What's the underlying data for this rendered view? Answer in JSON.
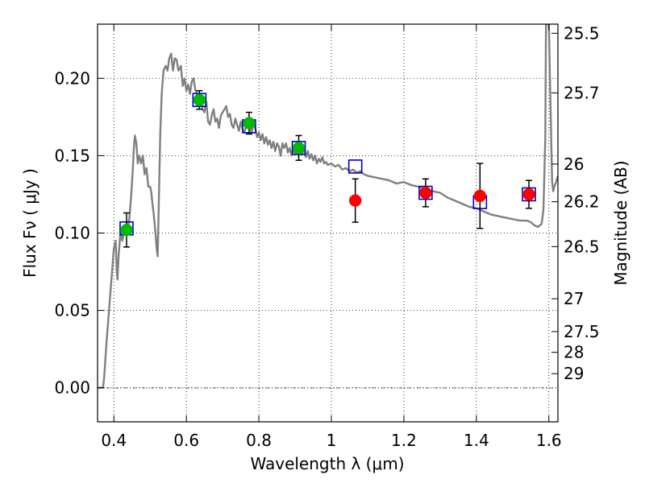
{
  "chart_data": {
    "type": "scatter",
    "xlabel": "Wavelength  λ (μm)",
    "ylabel": "Flux  Fν  ( μJy )",
    "ylabel_right": "Magnitude (AB)",
    "xlim": [
      0.355,
      1.625
    ],
    "ylim": [
      -0.022,
      0.235
    ],
    "grid": true,
    "x_ticks": [
      {
        "value": 0.4,
        "label": "0.4"
      },
      {
        "value": 0.6,
        "label": "0.6"
      },
      {
        "value": 0.8,
        "label": "0.8"
      },
      {
        "value": 1.0,
        "label": "1"
      },
      {
        "value": 1.2,
        "label": "1.2"
      },
      {
        "value": 1.4,
        "label": "1.4"
      },
      {
        "value": 1.6,
        "label": "1.6"
      }
    ],
    "y_ticks": [
      {
        "value": 0.0,
        "label": "0.00"
      },
      {
        "value": 0.05,
        "label": "0.05"
      },
      {
        "value": 0.1,
        "label": "0.10"
      },
      {
        "value": 0.15,
        "label": "0.15"
      },
      {
        "value": 0.2,
        "label": "0.20"
      }
    ],
    "right_ticks": [
      {
        "value": 25.5,
        "label": "25.5"
      },
      {
        "value": 25.7,
        "label": "25.7"
      },
      {
        "value": 26.0,
        "label": "26"
      },
      {
        "value": 26.2,
        "label": "26.2"
      },
      {
        "value": 26.5,
        "label": "26.5"
      },
      {
        "value": 27.0,
        "label": "27"
      },
      {
        "value": 27.5,
        "label": "27.5"
      },
      {
        "value": 28.0,
        "label": "28"
      },
      {
        "value": 29.0,
        "label": "29"
      }
    ],
    "series": [
      {
        "role": "model-spectrum",
        "color": "#808080",
        "points": [
          [
            0.355,
            0.0
          ],
          [
            0.37,
            0.0
          ],
          [
            0.373,
            0.006
          ],
          [
            0.38,
            0.03
          ],
          [
            0.39,
            0.06
          ],
          [
            0.395,
            0.075
          ],
          [
            0.4,
            0.09
          ],
          [
            0.405,
            0.095
          ],
          [
            0.408,
            0.075
          ],
          [
            0.41,
            0.07
          ],
          [
            0.413,
            0.085
          ],
          [
            0.418,
            0.1
          ],
          [
            0.423,
            0.095
          ],
          [
            0.428,
            0.1
          ],
          [
            0.433,
            0.105
          ],
          [
            0.438,
            0.102
          ],
          [
            0.443,
            0.11
          ],
          [
            0.448,
            0.125
          ],
          [
            0.452,
            0.14
          ],
          [
            0.455,
            0.155
          ],
          [
            0.458,
            0.163
          ],
          [
            0.462,
            0.158
          ],
          [
            0.466,
            0.145
          ],
          [
            0.47,
            0.15
          ],
          [
            0.475,
            0.145
          ],
          [
            0.48,
            0.15
          ],
          [
            0.485,
            0.138
          ],
          [
            0.49,
            0.142
          ],
          [
            0.495,
            0.13
          ],
          [
            0.5,
            0.13
          ],
          [
            0.503,
            0.127
          ],
          [
            0.507,
            0.118
          ],
          [
            0.51,
            0.112
          ],
          [
            0.515,
            0.1
          ],
          [
            0.518,
            0.09
          ],
          [
            0.521,
            0.085
          ],
          [
            0.524,
            0.12
          ],
          [
            0.528,
            0.165
          ],
          [
            0.532,
            0.19
          ],
          [
            0.537,
            0.205
          ],
          [
            0.543,
            0.208
          ],
          [
            0.548,
            0.205
          ],
          [
            0.553,
            0.213
          ],
          [
            0.558,
            0.216
          ],
          [
            0.563,
            0.205
          ],
          [
            0.568,
            0.213
          ],
          [
            0.573,
            0.212
          ],
          [
            0.578,
            0.205
          ],
          [
            0.585,
            0.208
          ],
          [
            0.59,
            0.195
          ],
          [
            0.595,
            0.2
          ],
          [
            0.6,
            0.192
          ],
          [
            0.605,
            0.196
          ],
          [
            0.61,
            0.19
          ],
          [
            0.615,
            0.198
          ],
          [
            0.62,
            0.2
          ],
          [
            0.625,
            0.192
          ],
          [
            0.63,
            0.19
          ],
          [
            0.635,
            0.187
          ],
          [
            0.64,
            0.185
          ],
          [
            0.645,
            0.18
          ],
          [
            0.65,
            0.178
          ],
          [
            0.655,
            0.185
          ],
          [
            0.66,
            0.172
          ],
          [
            0.665,
            0.17
          ],
          [
            0.67,
            0.176
          ],
          [
            0.675,
            0.18
          ],
          [
            0.68,
            0.172
          ],
          [
            0.685,
            0.174
          ],
          [
            0.69,
            0.168
          ],
          [
            0.695,
            0.176
          ],
          [
            0.7,
            0.178
          ],
          [
            0.705,
            0.18
          ],
          [
            0.71,
            0.182
          ],
          [
            0.715,
            0.175
          ],
          [
            0.72,
            0.177
          ],
          [
            0.725,
            0.17
          ],
          [
            0.73,
            0.168
          ],
          [
            0.735,
            0.174
          ],
          [
            0.74,
            0.17
          ],
          [
            0.745,
            0.166
          ],
          [
            0.75,
            0.172
          ],
          [
            0.755,
            0.167
          ],
          [
            0.76,
            0.165
          ],
          [
            0.765,
            0.17
          ],
          [
            0.77,
            0.172
          ],
          [
            0.775,
            0.168
          ],
          [
            0.78,
            0.165
          ],
          [
            0.785,
            0.17
          ],
          [
            0.79,
            0.168
          ],
          [
            0.795,
            0.162
          ],
          [
            0.8,
            0.165
          ],
          [
            0.805,
            0.16
          ],
          [
            0.81,
            0.164
          ],
          [
            0.815,
            0.158
          ],
          [
            0.82,
            0.162
          ],
          [
            0.825,
            0.157
          ],
          [
            0.83,
            0.16
          ],
          [
            0.835,
            0.155
          ],
          [
            0.84,
            0.159
          ],
          [
            0.845,
            0.153
          ],
          [
            0.85,
            0.158
          ],
          [
            0.855,
            0.156
          ],
          [
            0.86,
            0.15
          ],
          [
            0.865,
            0.158
          ],
          [
            0.87,
            0.155
          ],
          [
            0.875,
            0.158
          ],
          [
            0.88,
            0.152
          ],
          [
            0.885,
            0.155
          ],
          [
            0.89,
            0.15
          ],
          [
            0.895,
            0.154
          ],
          [
            0.9,
            0.151
          ],
          [
            0.905,
            0.157
          ],
          [
            0.91,
            0.153
          ],
          [
            0.915,
            0.157
          ],
          [
            0.92,
            0.151
          ],
          [
            0.925,
            0.155
          ],
          [
            0.93,
            0.149
          ],
          [
            0.935,
            0.153
          ],
          [
            0.94,
            0.148
          ],
          [
            0.945,
            0.151
          ],
          [
            0.95,
            0.147
          ],
          [
            0.955,
            0.15
          ],
          [
            0.96,
            0.145
          ],
          [
            0.965,
            0.148
          ],
          [
            0.97,
            0.146
          ],
          [
            0.975,
            0.149
          ],
          [
            0.98,
            0.145
          ],
          [
            0.985,
            0.146
          ],
          [
            0.99,
            0.144
          ],
          [
            1.0,
            0.145
          ],
          [
            1.01,
            0.143
          ],
          [
            1.02,
            0.144
          ],
          [
            1.03,
            0.141
          ],
          [
            1.04,
            0.142
          ],
          [
            1.05,
            0.14
          ],
          [
            1.06,
            0.141
          ],
          [
            1.07,
            0.139
          ],
          [
            1.08,
            0.14
          ],
          [
            1.09,
            0.138
          ],
          [
            1.1,
            0.137
          ],
          [
            1.12,
            0.136
          ],
          [
            1.14,
            0.135
          ],
          [
            1.16,
            0.134
          ],
          [
            1.18,
            0.132
          ],
          [
            1.2,
            0.133
          ],
          [
            1.22,
            0.131
          ],
          [
            1.24,
            0.13
          ],
          [
            1.26,
            0.128
          ],
          [
            1.28,
            0.127
          ],
          [
            1.3,
            0.126
          ],
          [
            1.32,
            0.123
          ],
          [
            1.34,
            0.121
          ],
          [
            1.36,
            0.119
          ],
          [
            1.38,
            0.117
          ],
          [
            1.4,
            0.116
          ],
          [
            1.42,
            0.114
          ],
          [
            1.44,
            0.112
          ],
          [
            1.46,
            0.111
          ],
          [
            1.48,
            0.11
          ],
          [
            1.5,
            0.109
          ],
          [
            1.52,
            0.108
          ],
          [
            1.54,
            0.108
          ],
          [
            1.55,
            0.107
          ],
          [
            1.56,
            0.105
          ],
          [
            1.57,
            0.104
          ],
          [
            1.58,
            0.106
          ],
          [
            1.585,
            0.115
          ],
          [
            1.59,
            0.16
          ],
          [
            1.592,
            0.235
          ],
          [
            1.6,
            0.235
          ],
          [
            1.603,
            0.2
          ],
          [
            1.606,
            0.165
          ],
          [
            1.609,
            0.133
          ],
          [
            1.612,
            0.127
          ],
          [
            1.615,
            0.13
          ],
          [
            1.62,
            0.133
          ],
          [
            1.625,
            0.137
          ]
        ]
      },
      {
        "role": "model-synthetic-photometry",
        "marker": "open-square",
        "color": "#0000cc",
        "x": [
          0.435,
          0.636,
          0.773,
          0.91,
          1.066,
          1.26,
          1.41,
          1.545
        ],
        "y": [
          0.103,
          0.186,
          0.169,
          0.155,
          0.143,
          0.126,
          0.12,
          0.125
        ]
      },
      {
        "role": "optical-measurements",
        "marker": "filled-circle",
        "color": "#00bb00",
        "x": [
          0.435,
          0.636,
          0.773,
          0.91
        ],
        "y": [
          0.102,
          0.186,
          0.171,
          0.155
        ],
        "yerr": [
          0.011,
          0.006,
          0.007,
          0.008
        ]
      },
      {
        "role": "infrared-measurements",
        "marker": "filled-circle",
        "color": "#ff0000",
        "x": [
          1.066,
          1.26,
          1.41,
          1.545
        ],
        "y": [
          0.121,
          0.126,
          0.124,
          0.125
        ],
        "yerr": [
          0.014,
          0.009,
          0.021,
          0.009
        ]
      }
    ]
  }
}
